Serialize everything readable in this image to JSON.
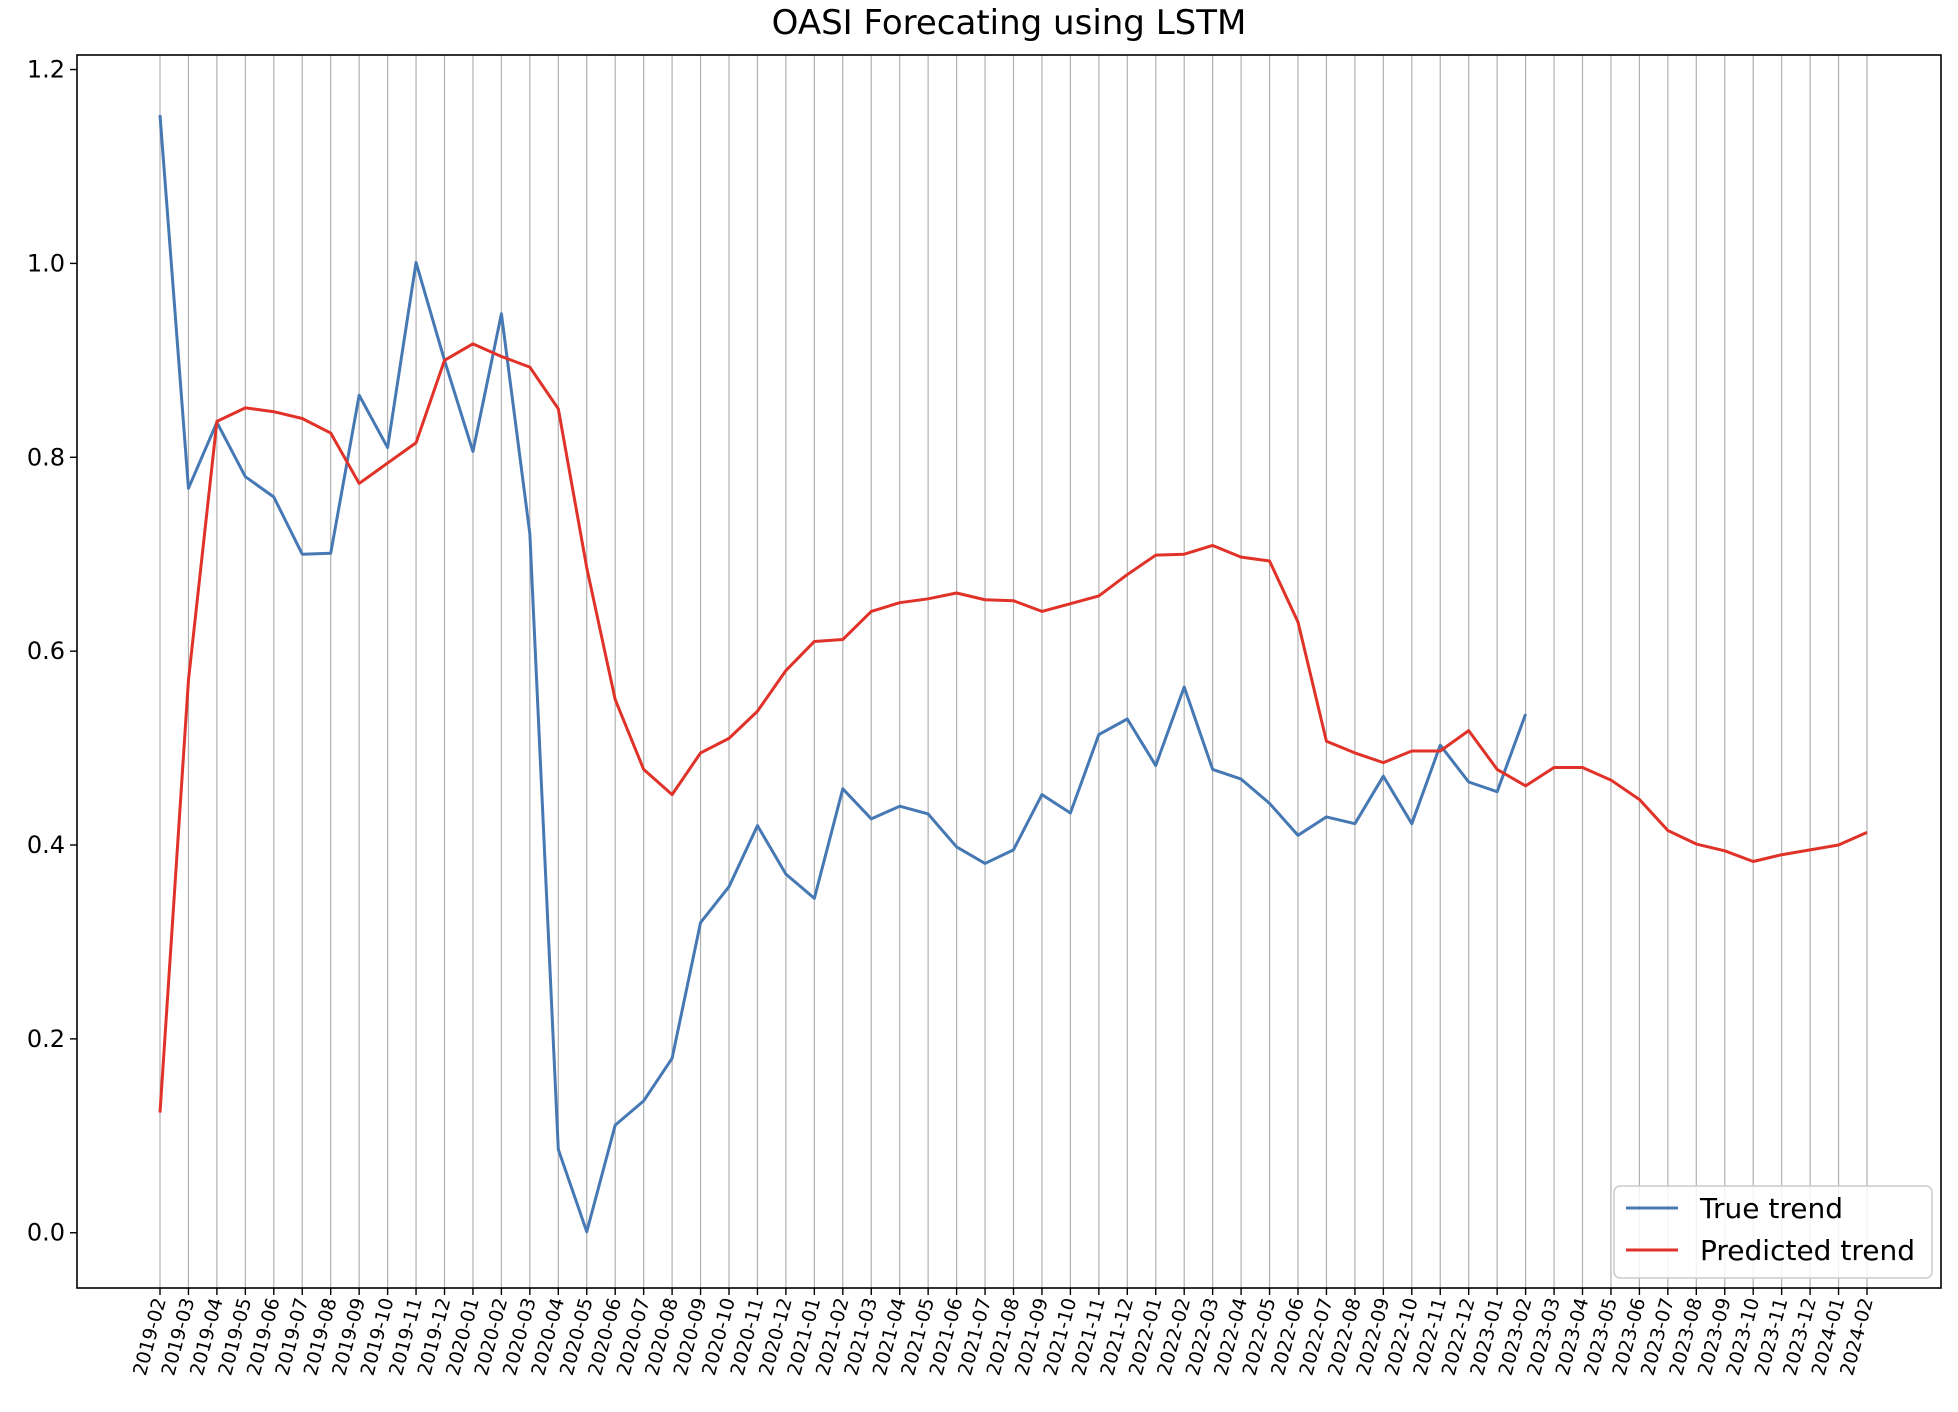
{
  "chart_data": {
    "type": "line",
    "title": "OASI Forecating using LSTM",
    "xlabel": "",
    "ylabel": "",
    "ylim": [
      -0.057,
      1.215
    ],
    "yticks": [
      0.0,
      0.2,
      0.4,
      0.6,
      0.8,
      1.0,
      1.2
    ],
    "ytick_labels": [
      "0.0",
      "0.2",
      "0.4",
      "0.6",
      "0.8",
      "1.0",
      "1.2"
    ],
    "x_grid": true,
    "y_grid": false,
    "legend_position": "lower-right",
    "categories": [
      "2019-02",
      "2019-03",
      "2019-04",
      "2019-05",
      "2019-06",
      "2019-07",
      "2019-08",
      "2019-09",
      "2019-10",
      "2019-11",
      "2019-12",
      "2020-01",
      "2020-02",
      "2020-03",
      "2020-04",
      "2020-05",
      "2020-06",
      "2020-07",
      "2020-08",
      "2020-09",
      "2020-10",
      "2020-11",
      "2020-12",
      "2021-01",
      "2021-02",
      "2021-03",
      "2021-04",
      "2021-05",
      "2021-06",
      "2021-07",
      "2021-08",
      "2021-09",
      "2021-10",
      "2021-11",
      "2021-12",
      "2022-01",
      "2022-02",
      "2022-03",
      "2022-04",
      "2022-05",
      "2022-06",
      "2022-07",
      "2022-08",
      "2022-09",
      "2022-10",
      "2022-11",
      "2022-12",
      "2023-01",
      "2023-02",
      "2023-03",
      "2023-04",
      "2023-05",
      "2023-06",
      "2023-07",
      "2023-08",
      "2023-09",
      "2023-10",
      "2023-11",
      "2023-12",
      "2024-01",
      "2024-02"
    ],
    "series": [
      {
        "name": "True trend",
        "color": "#4678b4",
        "values": [
          1.153,
          0.768,
          0.836,
          0.78,
          0.759,
          0.7,
          0.701,
          0.864,
          0.81,
          1.001,
          0.9,
          0.806,
          0.948,
          0.721,
          0.086,
          0.001,
          0.111,
          0.136,
          0.18,
          0.32,
          0.357,
          0.42,
          0.37,
          0.345,
          0.458,
          0.427,
          0.44,
          0.432,
          0.398,
          0.381,
          0.395,
          0.452,
          0.433,
          0.514,
          0.53,
          0.482,
          0.563,
          0.478,
          0.468,
          0.443,
          0.41,
          0.429,
          0.422,
          0.471,
          0.422,
          0.503,
          0.465,
          0.455,
          0.535,
          null,
          null,
          null,
          null,
          null,
          null,
          null,
          null,
          null,
          null,
          null,
          null
        ]
      },
      {
        "name": "Predicted trend",
        "color": "#e03228",
        "values": [
          0.124,
          0.57,
          0.837,
          0.851,
          0.847,
          0.84,
          0.825,
          0.773,
          0.794,
          0.815,
          0.9,
          0.917,
          0.904,
          0.893,
          0.85,
          0.686,
          0.55,
          0.478,
          0.452,
          0.495,
          0.51,
          0.538,
          0.58,
          0.61,
          0.612,
          0.641,
          0.65,
          0.654,
          0.66,
          0.653,
          0.652,
          0.641,
          0.649,
          0.657,
          0.679,
          0.699,
          0.7,
          0.709,
          0.697,
          0.693,
          0.63,
          0.507,
          0.495,
          0.485,
          0.497,
          0.497,
          0.518,
          0.478,
          0.461,
          0.48,
          0.48,
          0.467,
          0.447,
          0.415,
          0.401,
          0.394,
          0.383,
          0.39,
          0.395,
          0.4,
          0.413
        ]
      }
    ]
  }
}
